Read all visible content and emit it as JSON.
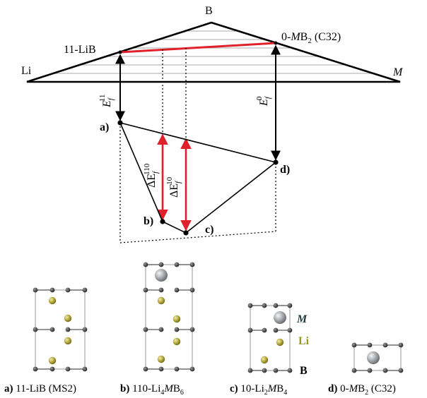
{
  "triangle": {
    "vertex_top": "B",
    "vertex_left": "Li",
    "vertex_right": "M",
    "phase_left": "11-LiB",
    "phase_right_prefix": "0-",
    "phase_right_italic": "M",
    "phase_right_mid": "B",
    "phase_right_sub": "2",
    "phase_right_suffix": " (C32)"
  },
  "energies": {
    "ef11_base": "E",
    "ef11_sub": "f",
    "ef11_sup": "11",
    "ef0_base": "E",
    "ef0_sub": "f",
    "ef0_sup": "0",
    "def110_base": "ΔE",
    "def110_sub": "f",
    "def110_sup": "110",
    "def10_base": "ΔE",
    "def10_sub": "f",
    "def10_sup": "10"
  },
  "points": {
    "a": "a)",
    "b": "b)",
    "c": "c)",
    "d": "d)"
  },
  "legend": {
    "metal": "M",
    "lithium": "Li",
    "boron": "B"
  },
  "captions": {
    "a_letter": "a)",
    "a_text": " 11-LiB (MS2)",
    "b_letter": "b)",
    "b_pre": " 110-Li",
    "b_sub1": "4",
    "b_italic": "M",
    "b_mid": "B",
    "b_sub2": "6",
    "c_letter": "c)",
    "c_pre": " 10-Li",
    "c_sub1": "2",
    "c_italic": "M",
    "c_mid": "B",
    "c_sub2": "4",
    "d_letter": "d)",
    "d_pre": " 0-",
    "d_italic": "M",
    "d_mid": "B",
    "d_sub": "2",
    "d_suffix": " (C32)"
  },
  "colors": {
    "highlight_red": "#e0202a",
    "lithium_atom": "#b3a83a",
    "metal_atom": "#9a9ea3",
    "boron_atom": "#555555",
    "cell_frame": "#b5b5b5",
    "legend_metal_text": "#1f3a3a",
    "legend_li_text": "#9a9a1c"
  }
}
